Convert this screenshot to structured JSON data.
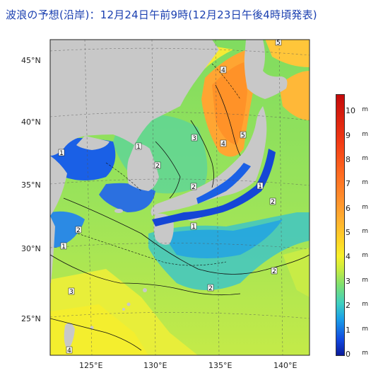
{
  "title": "波浪の予想(沿岸)：12月24日午前9時(12月23日午後4時頃発表)",
  "lat_labels": [
    "45°N",
    "40°N",
    "35°N",
    "30°N",
    "25°N"
  ],
  "lon_labels": [
    "125°E",
    "130°E",
    "135°E",
    "140°E"
  ],
  "colorbar": {
    "unit": "m",
    "ticks": [
      "10",
      "9",
      "8",
      "7",
      "6",
      "5",
      "4",
      "3",
      "2",
      "1",
      "0"
    ]
  },
  "contour_labels": [
    "1",
    "2",
    "3",
    "4",
    "5"
  ],
  "colors": {
    "land": "#c8c8c8",
    "low_wave": "#1a52e0",
    "mid_wave": "#9ee656",
    "high_wave": "#ff9a30",
    "title": "#1a3fb0"
  }
}
